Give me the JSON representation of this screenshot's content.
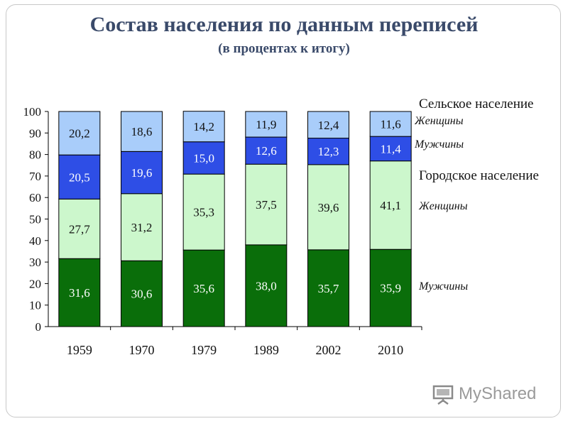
{
  "chart_data": {
    "type": "bar",
    "stacked": true,
    "title": "Состав населения по данным переписей",
    "subtitle": "(в процентах к итогу)",
    "categories": [
      "1959",
      "1970",
      "1979",
      "1989",
      "2002",
      "2010"
    ],
    "ylim": [
      0,
      100
    ],
    "yticks": [
      "0",
      "10",
      "20",
      "30",
      "40",
      "50",
      "60",
      "70",
      "80",
      "90",
      "100"
    ],
    "series": [
      {
        "name": "Мужчины",
        "values": [
          31.6,
          30.6,
          35.6,
          38.0,
          35.7,
          35.9
        ],
        "labels": [
          "31,6",
          "30,6",
          "35,6",
          "38,0",
          "35,7",
          "35,9"
        ],
        "color": "#0a6e0a",
        "text_color": "#ffffff"
      },
      {
        "name": "Женщины",
        "values": [
          27.7,
          31.2,
          35.3,
          37.5,
          39.6,
          41.1
        ],
        "labels": [
          "27,7",
          "31,2",
          "35,3",
          "37,5",
          "39,6",
          "41,1"
        ],
        "color": "#ccf7cc",
        "text_color": "#111111"
      },
      {
        "name": "Мужчины",
        "values": [
          20.5,
          19.6,
          15.0,
          12.6,
          12.3,
          11.4
        ],
        "labels": [
          "20,5",
          "19,6",
          "15,0",
          "12,6",
          "12,3",
          "11,4"
        ],
        "color": "#2e4ee6",
        "text_color": "#ffffff"
      },
      {
        "name": "Женщины",
        "values": [
          20.2,
          18.6,
          14.2,
          11.9,
          12.4,
          11.6
        ],
        "labels": [
          "20,2",
          "18,6",
          "14,2",
          "11,9",
          "12,4",
          "11,6"
        ],
        "color": "#a9cdfa",
        "text_color": "#111111"
      }
    ],
    "legend": {
      "rural_heading": "Сельское население",
      "rural_women": "Женщины",
      "rural_men": "Мужчины",
      "urban_heading": "Городское население",
      "urban_women": "Женщины",
      "urban_men": "Мужчины"
    }
  },
  "watermark": {
    "text": "MyShared",
    "icon": "presentation-board-icon"
  }
}
